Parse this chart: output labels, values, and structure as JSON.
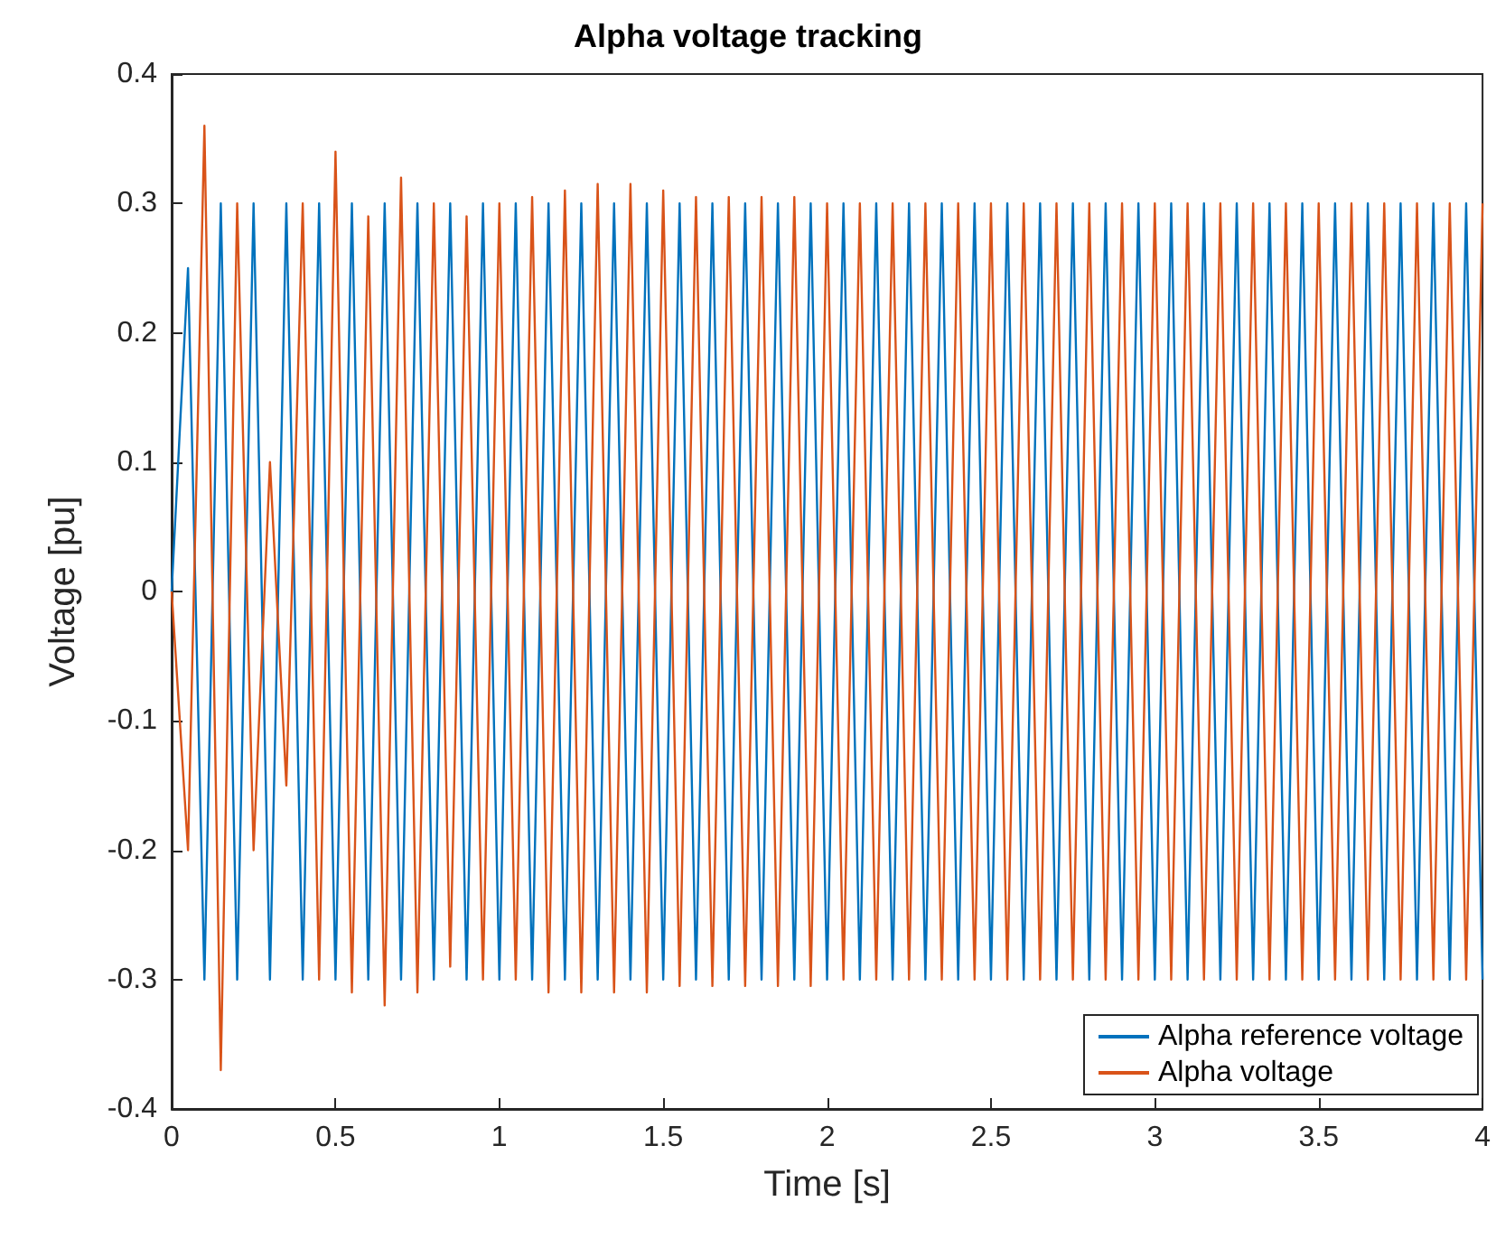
{
  "chart_data": {
    "type": "line",
    "title": "Alpha voltage tracking",
    "xlabel": "Time [s]",
    "ylabel": "Voltage [pu]",
    "x": [
      0,
      0.05,
      0.1,
      0.15,
      0.2,
      0.25,
      0.3,
      0.35,
      0.4,
      0.45,
      0.5,
      0.55,
      0.6,
      0.65,
      0.7,
      0.75,
      0.8,
      0.85,
      0.9,
      0.95,
      1,
      1.05,
      1.1,
      1.15,
      1.2,
      1.25,
      1.3,
      1.35,
      1.4,
      1.45,
      1.5,
      1.55,
      1.6,
      1.65,
      1.7,
      1.75,
      1.8,
      1.85,
      1.9,
      1.95,
      2,
      2.05,
      2.1,
      2.15,
      2.2,
      2.25,
      2.3,
      2.35,
      2.4,
      2.45,
      2.5,
      2.55,
      2.6,
      2.65,
      2.7,
      2.75,
      2.8,
      2.85,
      2.9,
      2.95,
      3,
      3.05,
      3.1,
      3.15,
      3.2,
      3.25,
      3.3,
      3.35,
      3.4,
      3.45,
      3.5,
      3.55,
      3.6,
      3.65,
      3.7,
      3.75,
      3.8,
      3.85,
      3.9,
      3.95,
      4
    ],
    "series": [
      {
        "name": "Alpha reference voltage",
        "color": "#0072bd",
        "values": [
          0,
          0.25,
          -0.3,
          0.3,
          -0.3,
          0.3,
          -0.3,
          0.3,
          -0.3,
          0.3,
          -0.3,
          0.3,
          -0.3,
          0.3,
          -0.3,
          0.3,
          -0.3,
          0.3,
          -0.3,
          0.3,
          -0.3,
          0.3,
          -0.3,
          0.3,
          -0.3,
          0.3,
          -0.3,
          0.3,
          -0.3,
          0.3,
          -0.3,
          0.3,
          -0.3,
          0.3,
          -0.3,
          0.3,
          -0.3,
          0.3,
          -0.3,
          0.3,
          -0.3,
          0.3,
          -0.3,
          0.3,
          -0.3,
          0.3,
          -0.3,
          0.3,
          -0.3,
          0.3,
          -0.3,
          0.3,
          -0.3,
          0.3,
          -0.3,
          0.3,
          -0.3,
          0.3,
          -0.3,
          0.3,
          -0.3,
          0.3,
          -0.3,
          0.3,
          -0.3,
          0.3,
          -0.3,
          0.3,
          -0.3,
          0.3,
          -0.3,
          0.3,
          -0.3,
          0.3,
          -0.3,
          0.3,
          -0.3,
          0.3,
          -0.3,
          0.3,
          -0.3
        ]
      },
      {
        "name": "Alpha voltage",
        "color": "#d95319",
        "values": [
          0,
          -0.2,
          0.36,
          -0.37,
          0.3,
          -0.2,
          0.1,
          -0.15,
          0.3,
          -0.3,
          0.34,
          -0.31,
          0.29,
          -0.32,
          0.32,
          -0.31,
          0.3,
          -0.29,
          0.29,
          -0.3,
          0.3,
          -0.3,
          0.305,
          -0.31,
          0.31,
          -0.31,
          0.315,
          -0.31,
          0.315,
          -0.31,
          0.31,
          -0.305,
          0.305,
          -0.305,
          0.305,
          -0.305,
          0.305,
          -0.305,
          0.305,
          -0.305,
          0.3,
          -0.3,
          0.3,
          -0.3,
          0.3,
          -0.3,
          0.3,
          -0.3,
          0.3,
          -0.3,
          0.3,
          -0.3,
          0.3,
          -0.3,
          0.3,
          -0.3,
          0.3,
          -0.3,
          0.3,
          -0.3,
          0.3,
          -0.3,
          0.3,
          -0.3,
          0.3,
          -0.3,
          0.3,
          -0.3,
          0.3,
          -0.3,
          0.3,
          -0.3,
          0.3,
          -0.3,
          0.3,
          -0.3,
          0.3,
          -0.3,
          0.3,
          -0.3,
          0.3
        ]
      }
    ],
    "xlim": [
      0,
      4
    ],
    "xticks": [
      0,
      0.5,
      1,
      1.5,
      2,
      2.5,
      3,
      3.5,
      4
    ],
    "ylim": [
      -0.4,
      0.4
    ],
    "yticks": [
      -0.4,
      -0.3,
      -0.2,
      -0.1,
      0,
      0.1,
      0.2,
      0.3,
      0.4
    ],
    "grid": false,
    "legend": "bottom right",
    "marker": "none",
    "line_style": "solid"
  }
}
